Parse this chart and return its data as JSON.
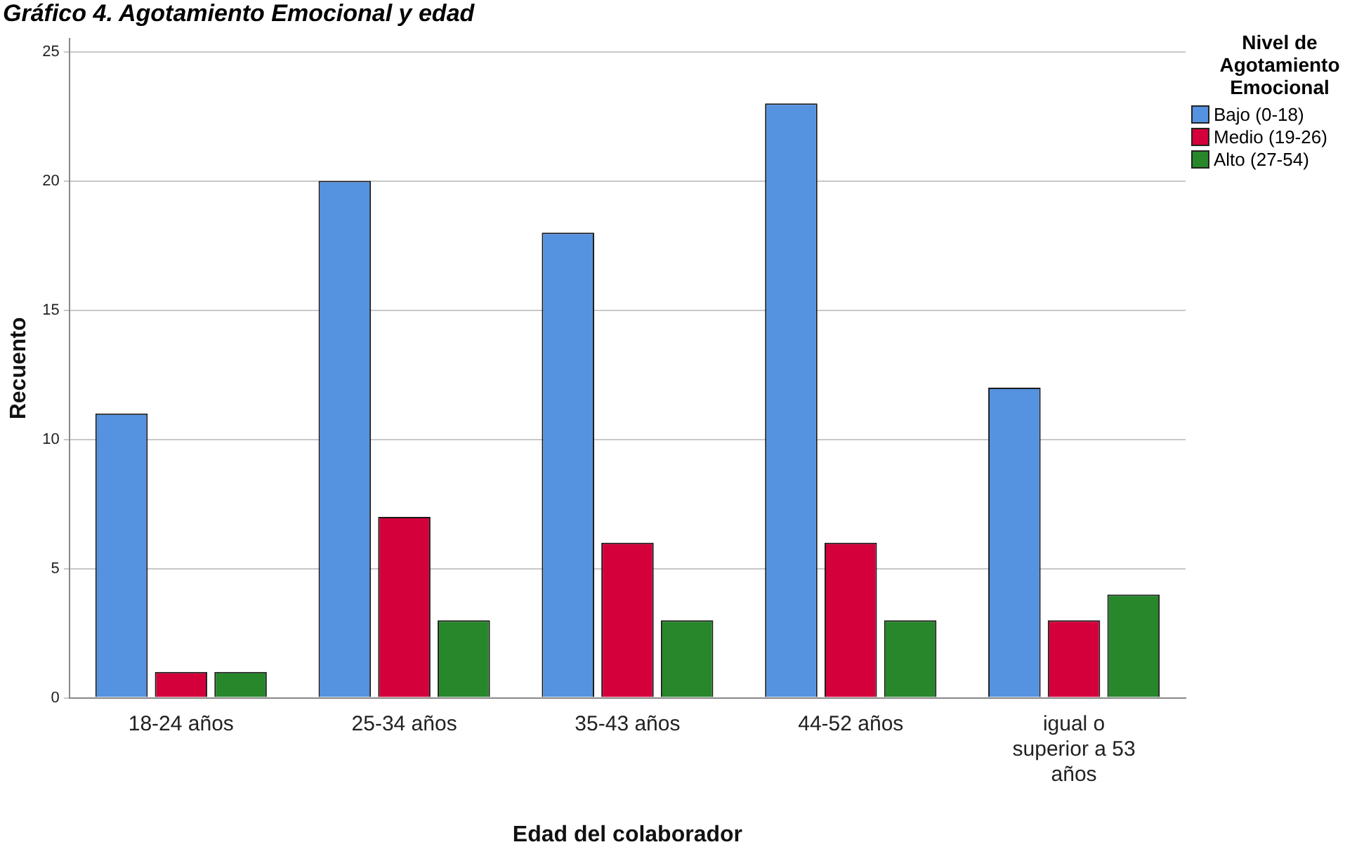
{
  "chart_data": {
    "type": "bar",
    "title": "Gráfico 4. Agotamiento Emocional y edad",
    "xlabel": "Edad del colaborador",
    "ylabel": "Recuento",
    "legend_title": "Nivel de Agotamiento Emocional",
    "categories": [
      "18-24 años",
      "25-34 años",
      "35-43 años",
      "44-52 años",
      "igual o superior a 53 años"
    ],
    "series": [
      {
        "name": "Bajo (0-18)",
        "color": "#5592e0",
        "values": [
          11,
          20,
          18,
          23,
          12
        ]
      },
      {
        "name": "Medio (19-26)",
        "color": "#d4003b",
        "values": [
          1,
          7,
          6,
          6,
          3
        ]
      },
      {
        "name": "Alto (27-54)",
        "color": "#27872a",
        "values": [
          1,
          3,
          3,
          3,
          4
        ]
      }
    ],
    "ylim": [
      0,
      25.5
    ],
    "yticks": [
      0,
      5,
      10,
      15,
      20,
      25
    ],
    "grid": "y",
    "legend": "top right"
  }
}
